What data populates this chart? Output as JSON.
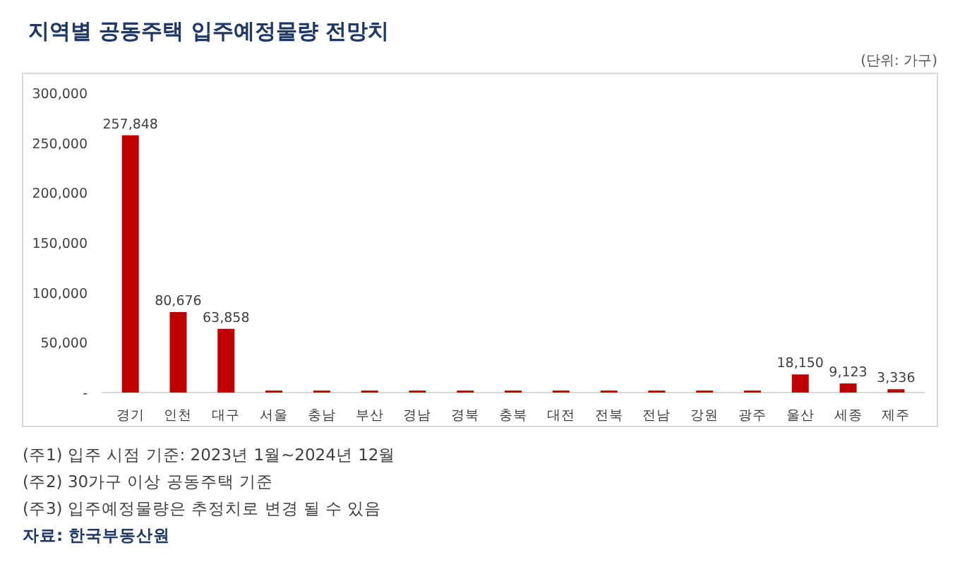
{
  "chart_data": {
    "type": "bar",
    "title": "지역별 공동주택 입주예정물량 전망치",
    "categories": [
      "경기",
      "인천",
      "대구",
      "서울",
      "충남",
      "부산",
      "경남",
      "경북",
      "충북",
      "대전",
      "전북",
      "전남",
      "강원",
      "광주",
      "울산",
      "세종",
      "제주"
    ],
    "values": [
      257848,
      80676,
      63858,
      2000,
      2000,
      2000,
      2000,
      2000,
      2000,
      2000,
      2000,
      2000,
      2000,
      2000,
      18150,
      9123,
      3336
    ],
    "value_labels": [
      "257,848",
      "80,676",
      "63,858",
      null,
      null,
      null,
      null,
      null,
      null,
      null,
      null,
      null,
      null,
      null,
      "18,150",
      "9,123",
      "3,336"
    ],
    "color": "#c00000",
    "ylim": [
      0,
      300000
    ],
    "yticks": [
      {
        "value": 0,
        "label": "-"
      },
      {
        "value": 50000,
        "label": "50,000"
      },
      {
        "value": 100000,
        "label": "100,000"
      },
      {
        "value": 150000,
        "label": "150,000"
      },
      {
        "value": 200000,
        "label": "200,000"
      },
      {
        "value": 250000,
        "label": "250,000"
      },
      {
        "value": 300000,
        "label": "300,000"
      }
    ],
    "grid": false,
    "annotations": [
      "(단위: 가구)",
      "(주1) 입주 시점 기준: 2023년 1월~2024년 12월",
      "(주2) 30가구 이상 공동주택 기준",
      "(주3) 입주예정물량은 추정치로 변경 될 수 있음",
      "자료: 한국부동산원"
    ]
  }
}
